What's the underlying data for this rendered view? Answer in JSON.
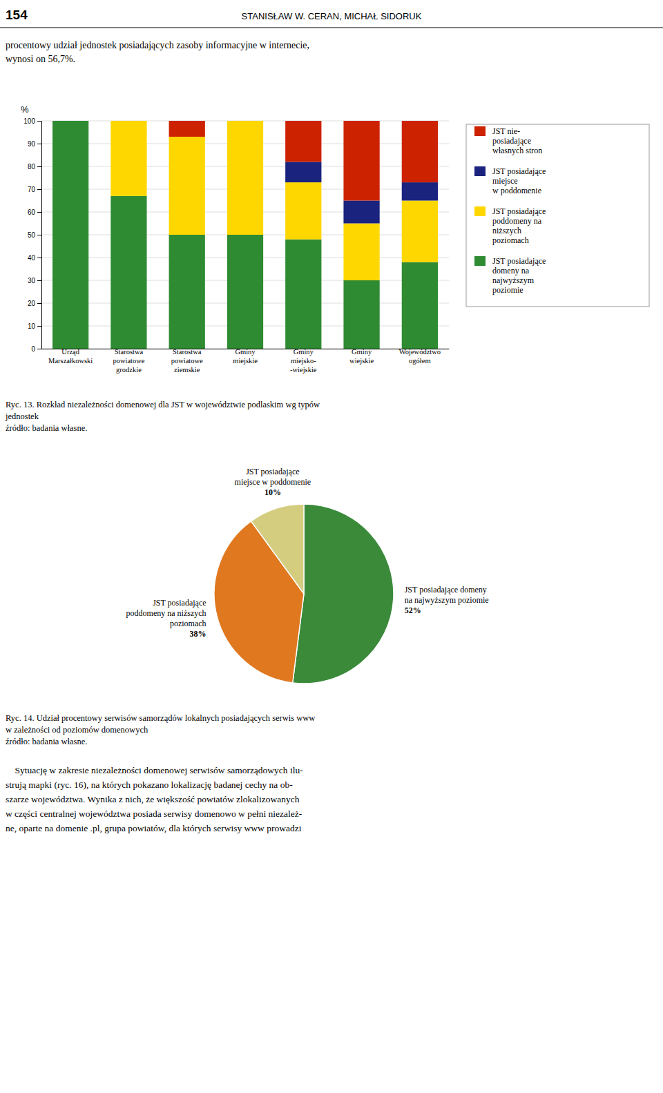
{
  "page_header": "154",
  "page_title": "STANISŁAW W. CERAN, MICHAŁ SIDORUK",
  "intro_text": "procentowy udział jednostek posiadających zasoby informacyjne w internecie,\nwynosi on 56,7%.",
  "body_text": "    Sytuację w zakresie niezależności domenowej serwisów samorządowych ilu-\nstrują mapki (ryc. 16), na których pokazano lokalizację badanej cechy na ob-\nszarze województwa. Wynika z nich, że większość powiatów zlokalizowanych\nw części centralnej województwa posiada serwisy domenowo w pełni niezależ-\nne, oparte na domenie .pl, grupa powiatów, dla których serwisy www prowadzi",
  "chart_data": [
    {
      "type": "bar",
      "stacked": true,
      "title": "Ryc. 13. Rozkład niezależności domenowej dla JST w województwie podlaskim wg typów\njednostek",
      "subtitle": "źródło: badania własne.",
      "y_label": "%",
      "categories": [
        "Urząd\nMarszałkowski",
        "Starostwa\npowiatowe\ngrodzkie",
        "Starostwa\npowiatowe\nziemskie",
        "Gminy\nmiejskie",
        "Gminy\nmiejsko-\n-wiejskie",
        "Gminy\nwiejskie",
        "Województwo\nogółem"
      ],
      "series": [
        {
          "name": "JST posiadające\ndomeny na\nnajwyższym\npoziomie",
          "color": "#2E8B32",
          "values": [
            100,
            67,
            50,
            50,
            48,
            30,
            38
          ]
        },
        {
          "name": "JST posiadające\npoddomeny na\nniższych\npoziomach",
          "color": "#FFD700",
          "values": [
            0,
            33,
            43,
            50,
            25,
            25,
            27
          ]
        },
        {
          "name": "JST posiadające\nmiejsce\nw poddomenie",
          "color": "#1A237E",
          "values": [
            0,
            0,
            0,
            0,
            9,
            10,
            8
          ]
        },
        {
          "name": "JST nie-\nposiadające\nwłasnych stron",
          "color": "#CC2200",
          "values": [
            0,
            0,
            7,
            0,
            18,
            35,
            27
          ]
        }
      ],
      "ylim": [
        0,
        100
      ],
      "yticks": [
        0,
        10,
        20,
        30,
        40,
        50,
        60,
        70,
        80,
        90,
        100
      ],
      "grid": true,
      "legend": "right"
    },
    {
      "type": "pie",
      "title": "Ryc. 14. Udział procentowy serwisów samorządów lokalnych posiadających serwis www\nw zależności od poziomów domenowych",
      "subtitle": "źródło: badania własne.",
      "categories": [
        "JST posiadające domeny\nna najwyższym poziomie",
        "JST posiadające\npoddomeny na niższych\npoziomach",
        "JST posiadające\nmiejsce w poddomenie"
      ],
      "values": [
        52,
        38,
        10
      ],
      "value_labels": [
        "52%",
        "38%",
        "10%"
      ],
      "data_labels": true,
      "colors": [
        "#3A8A3A",
        "#E07820",
        "#D4CD80"
      ]
    }
  ]
}
